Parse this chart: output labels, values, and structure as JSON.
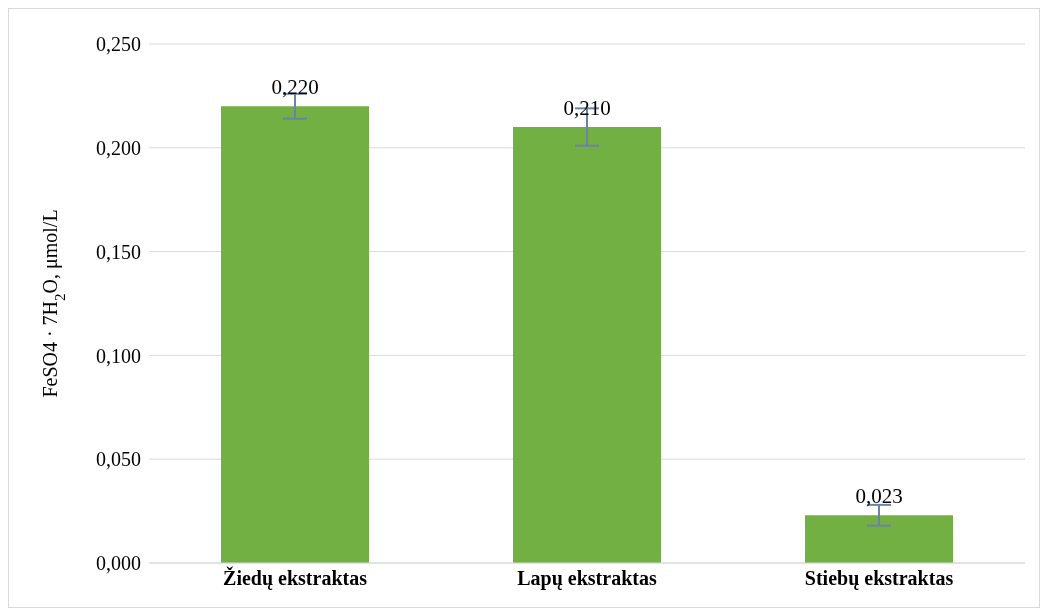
{
  "chart_data": {
    "type": "bar",
    "ylabel": "FeSO4 · 7H$_{2}$O, μmol/L",
    "categories": [
      "Žiedų ekstraktas",
      "Lapų ekstraktas",
      "Stiebų ekstraktas"
    ],
    "values": [
      0.22,
      0.21,
      0.023
    ],
    "errors": [
      0.006,
      0.009,
      0.005
    ],
    "value_labels": [
      "0,220",
      "0,210",
      "0,023"
    ],
    "color": "#72b043",
    "ylim": [
      0,
      0.25
    ],
    "yticks": [
      {
        "value": 0,
        "label": "0,000"
      },
      {
        "value": 0.05,
        "label": "0,050"
      },
      {
        "value": 0.1,
        "label": "0,100"
      },
      {
        "value": 0.15,
        "label": "0,150"
      },
      {
        "value": 0.2,
        "label": "0,200"
      },
      {
        "value": 0.25,
        "label": "0,250"
      }
    ],
    "grid": "y"
  }
}
